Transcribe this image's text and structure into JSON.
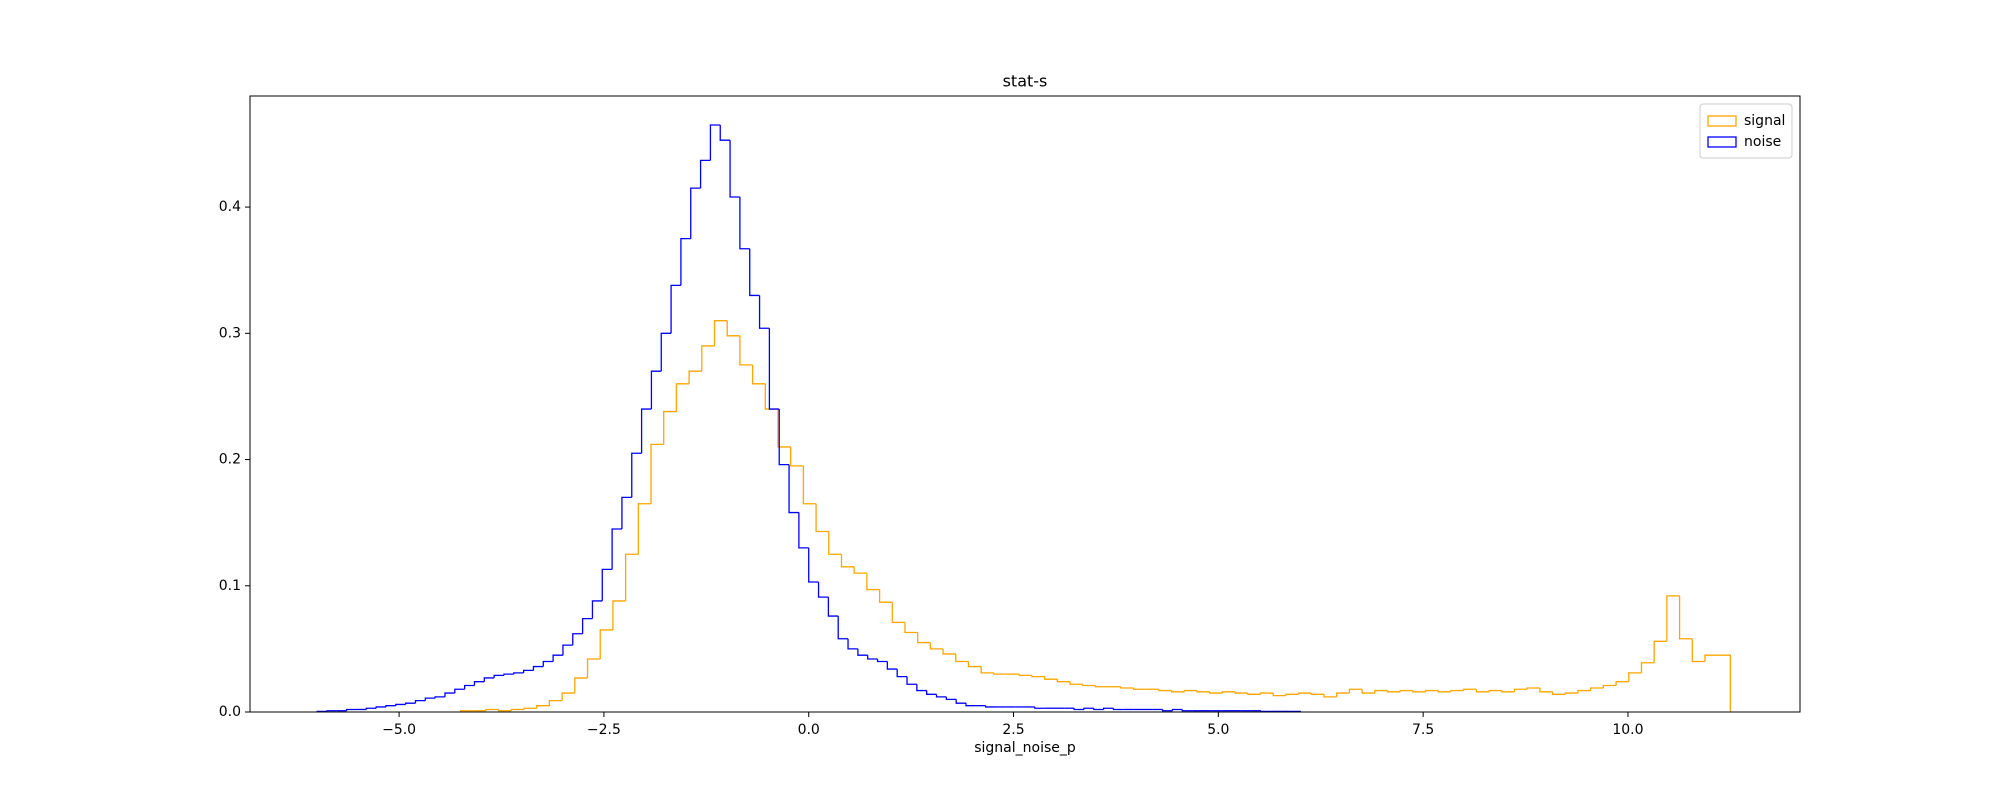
{
  "chart_data": {
    "type": "histogram",
    "title": "stat-s",
    "x_label": "signal_noise_p",
    "legend": "upper right",
    "xlim": [
      -6.82,
      12.1
    ],
    "ylim": [
      0,
      0.488
    ],
    "xticks": [
      {
        "value": -5,
        "label": "−5.0"
      },
      {
        "value": -2.5,
        "label": "−2.5"
      },
      {
        "value": 0,
        "label": "0.0"
      },
      {
        "value": 2.5,
        "label": "2.5"
      },
      {
        "value": 5,
        "label": "5.0"
      },
      {
        "value": 7.5,
        "label": "7.5"
      },
      {
        "value": 10,
        "label": "10.0"
      }
    ],
    "yticks": [
      {
        "value": 0,
        "label": "0.0"
      },
      0.1,
      0.2,
      0.3,
      0.4
    ],
    "series": [
      {
        "name": "signal",
        "color": "orange",
        "bins": [
          -4.25,
          -4.095,
          -3.94,
          -3.785,
          -3.63,
          -3.475,
          -3.32,
          -3.165,
          -3.01,
          -2.855,
          -2.7,
          -2.545,
          -2.39,
          -2.235,
          -2.08,
          -1.925,
          -1.77,
          -1.615,
          -1.46,
          -1.305,
          -1.15,
          -0.995,
          -0.84,
          -0.685,
          -0.53,
          -0.375,
          -0.22,
          -0.065,
          0.09,
          0.245,
          0.4,
          0.555,
          0.71,
          0.865,
          1.02,
          1.175,
          1.33,
          1.485,
          1.64,
          1.795,
          1.95,
          2.105,
          2.26,
          2.415,
          2.57,
          2.725,
          2.88,
          3.035,
          3.19,
          3.345,
          3.5,
          3.655,
          3.81,
          3.965,
          4.12,
          4.275,
          4.43,
          4.585,
          4.74,
          4.895,
          5.05,
          5.205,
          5.36,
          5.515,
          5.67,
          5.825,
          5.98,
          6.135,
          6.29,
          6.445,
          6.6,
          6.755,
          6.91,
          7.065,
          7.22,
          7.375,
          7.53,
          7.685,
          7.84,
          7.995,
          8.15,
          8.305,
          8.46,
          8.615,
          8.77,
          8.925,
          9.08,
          9.235,
          9.39,
          9.545,
          9.7,
          9.855,
          10.01,
          10.165,
          10.32,
          10.475,
          10.63,
          10.785,
          10.94,
          11.095,
          11.25
        ],
        "values": [
          0.001,
          0.001,
          0.002,
          0.001,
          0.002,
          0.003,
          0.005,
          0.009,
          0.015,
          0.027,
          0.042,
          0.065,
          0.088,
          0.125,
          0.165,
          0.212,
          0.238,
          0.26,
          0.27,
          0.29,
          0.31,
          0.298,
          0.275,
          0.26,
          0.24,
          0.21,
          0.195,
          0.165,
          0.143,
          0.125,
          0.115,
          0.11,
          0.097,
          0.087,
          0.071,
          0.063,
          0.055,
          0.05,
          0.046,
          0.04,
          0.036,
          0.031,
          0.03,
          0.03,
          0.029,
          0.028,
          0.026,
          0.024,
          0.022,
          0.021,
          0.02,
          0.02,
          0.019,
          0.018,
          0.018,
          0.017,
          0.016,
          0.017,
          0.016,
          0.015,
          0.016,
          0.015,
          0.014,
          0.015,
          0.013,
          0.014,
          0.015,
          0.014,
          0.012,
          0.015,
          0.018,
          0.015,
          0.017,
          0.016,
          0.017,
          0.016,
          0.017,
          0.016,
          0.017,
          0.018,
          0.016,
          0.017,
          0.016,
          0.018,
          0.019,
          0.016,
          0.014,
          0.015,
          0.017,
          0.019,
          0.021,
          0.024,
          0.031,
          0.039,
          0.056,
          0.092,
          0.058,
          0.04,
          0.045,
          0.045
        ]
      },
      {
        "name": "noise",
        "color": "blue",
        "bins": [
          -6,
          -5.88,
          -5.76,
          -5.64,
          -5.52,
          -5.4,
          -5.28,
          -5.16,
          -5.04,
          -4.92,
          -4.8,
          -4.68,
          -4.56,
          -4.44,
          -4.32,
          -4.2,
          -4.08,
          -3.96,
          -3.84,
          -3.72,
          -3.6,
          -3.48,
          -3.36,
          -3.24,
          -3.12,
          -3,
          -2.88,
          -2.76,
          -2.64,
          -2.52,
          -2.4,
          -2.28,
          -2.16,
          -2.04,
          -1.92,
          -1.8,
          -1.68,
          -1.56,
          -1.44,
          -1.32,
          -1.2,
          -1.08,
          -0.96,
          -0.84,
          -0.72,
          -0.6,
          -0.48,
          -0.36,
          -0.24,
          -0.12,
          0,
          0.12,
          0.24,
          0.36,
          0.48,
          0.6,
          0.72,
          0.84,
          0.96,
          1.08,
          1.2,
          1.32,
          1.44,
          1.56,
          1.68,
          1.8,
          1.92,
          2.04,
          2.16,
          2.28,
          2.4,
          2.52,
          2.64,
          2.76,
          2.88,
          3,
          3.12,
          3.24,
          3.36,
          3.48,
          3.6,
          3.72,
          3.84,
          3.96,
          4.08,
          4.2,
          4.32,
          4.44,
          4.56,
          4.68,
          4.8,
          4.92,
          5.04,
          5.16,
          5.28,
          5.4,
          5.52,
          5.64,
          5.76,
          5.88,
          6
        ],
        "values": [
          0.0005,
          0.001,
          0.001,
          0.002,
          0.002,
          0.003,
          0.004,
          0.005,
          0.006,
          0.007,
          0.009,
          0.011,
          0.012,
          0.015,
          0.018,
          0.021,
          0.024,
          0.027,
          0.029,
          0.03,
          0.031,
          0.033,
          0.036,
          0.04,
          0.045,
          0.053,
          0.062,
          0.074,
          0.088,
          0.113,
          0.145,
          0.17,
          0.205,
          0.24,
          0.27,
          0.3,
          0.338,
          0.375,
          0.415,
          0.437,
          0.465,
          0.453,
          0.408,
          0.367,
          0.33,
          0.304,
          0.24,
          0.196,
          0.158,
          0.13,
          0.103,
          0.091,
          0.076,
          0.058,
          0.05,
          0.045,
          0.042,
          0.04,
          0.034,
          0.028,
          0.022,
          0.017,
          0.014,
          0.012,
          0.01,
          0.007,
          0.005,
          0.005,
          0.004,
          0.004,
          0.004,
          0.004,
          0.004,
          0.003,
          0.003,
          0.003,
          0.003,
          0.002,
          0.003,
          0.002,
          0.003,
          0.002,
          0.002,
          0.002,
          0.002,
          0.002,
          0.001,
          0.002,
          0.001,
          0.001,
          0.001,
          0.001,
          0.001,
          0.001,
          0.001,
          0.001,
          0.0005,
          0.0005,
          0.0005,
          0.0005
        ]
      }
    ]
  }
}
